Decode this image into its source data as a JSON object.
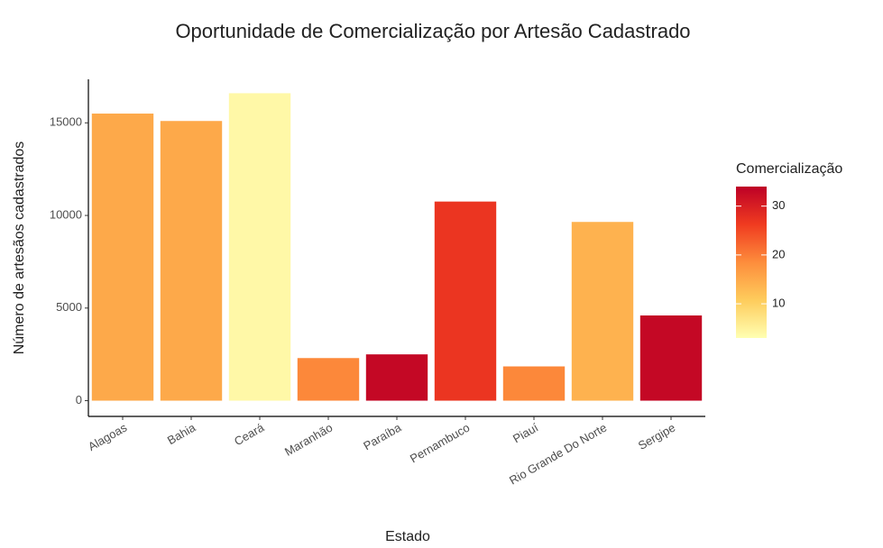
{
  "chart_data": {
    "type": "bar",
    "title": "Oportunidade de Comercialização por Artesão Cadastrado",
    "x_label": "Estado",
    "y_label": "Número de artesãos cadastrados",
    "categories": [
      "Alagoas",
      "Bahia",
      "Ceará",
      "Maranhão",
      "Paraíba",
      "Pernambuco",
      "Piauí",
      "Rio Grande Do Norte",
      "Sergipe"
    ],
    "values": [
      15500,
      15100,
      16600,
      2300,
      2500,
      10750,
      1850,
      9650,
      4600
    ],
    "color_values": [
      15,
      15,
      4,
      19,
      33,
      27,
      19,
      14,
      33
    ],
    "ylim": [
      -850,
      17350
    ],
    "yticks": [
      0,
      5000,
      10000,
      15000
    ],
    "colorbar": {
      "title": "Comercialização",
      "lim": [
        3,
        34
      ],
      "ticks": [
        10,
        20,
        30
      ],
      "colors": [
        "#ffffb2",
        "#fecc5c",
        "#fd8d3c",
        "#f03b20",
        "#bd0026"
      ]
    }
  }
}
